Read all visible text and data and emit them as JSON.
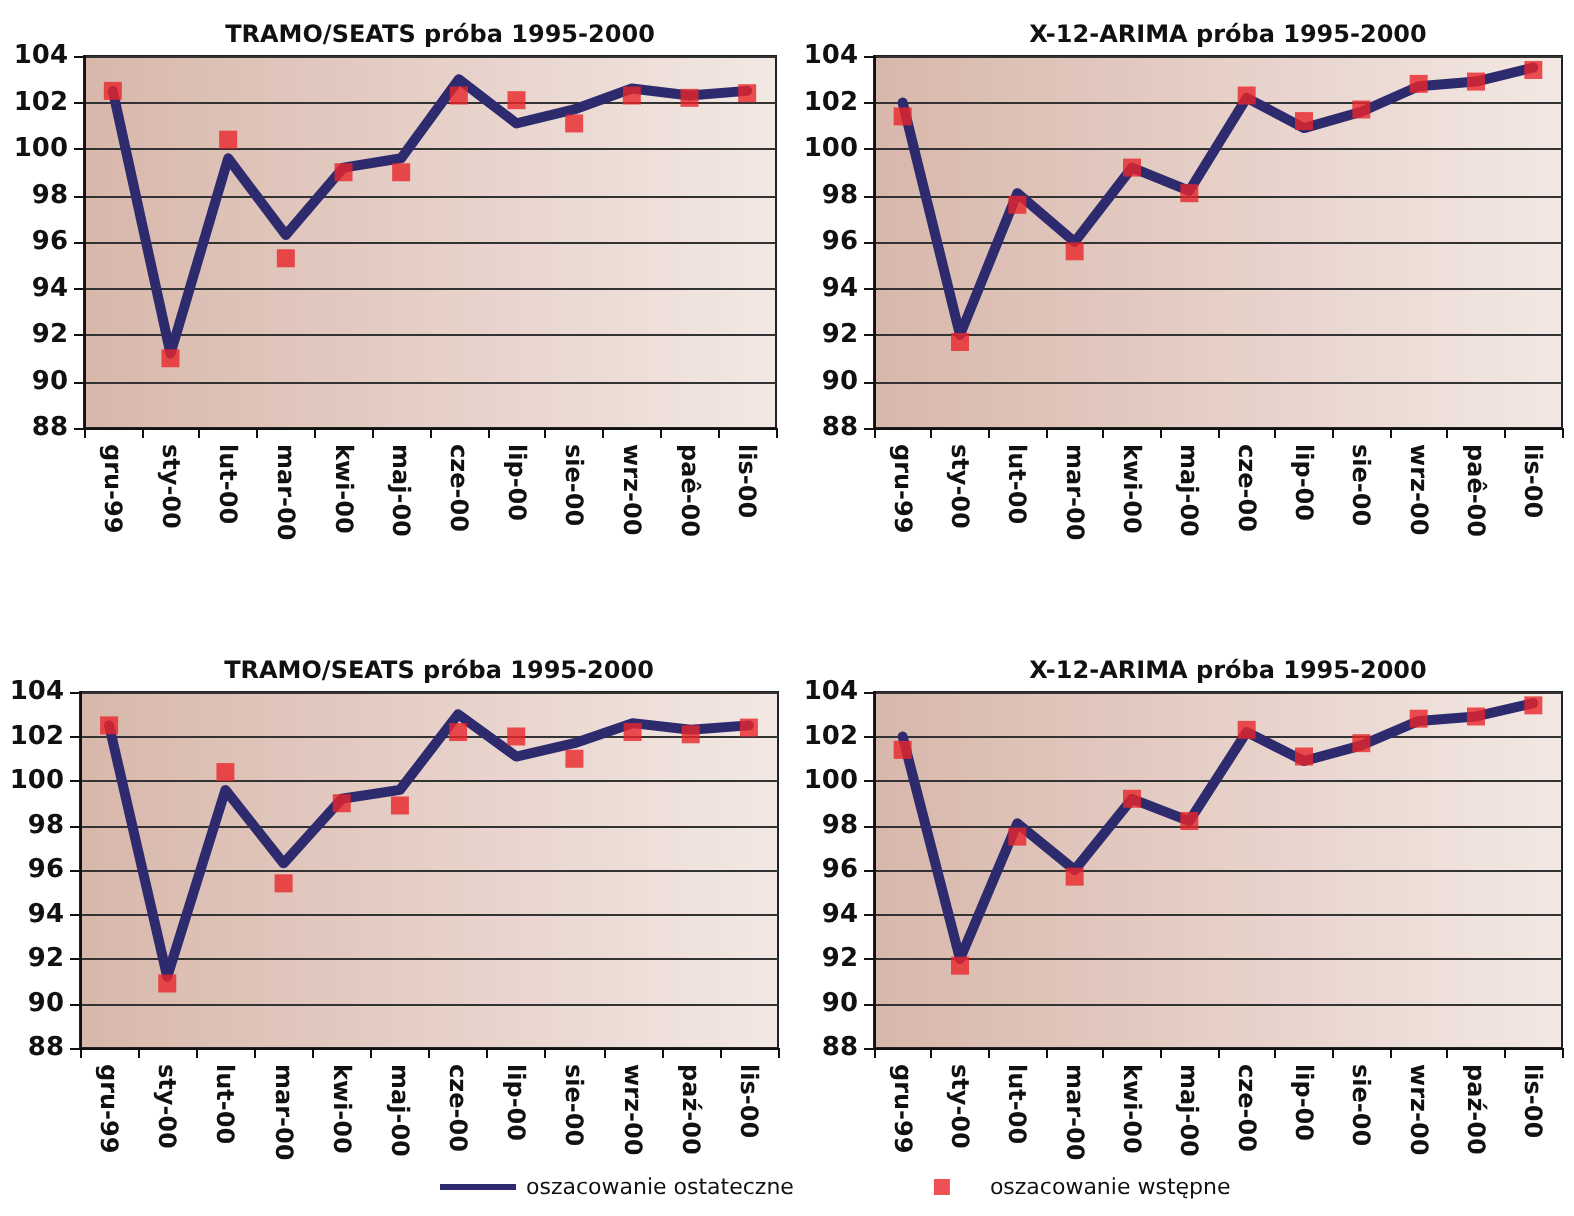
{
  "chart_data": [
    {
      "type": "line",
      "title": "TRAMO/SEATS próba 1995-2000",
      "categories": [
        "gru-99",
        "sty-00",
        "lut-00",
        "mar-00",
        "kwi-00",
        "maj-00",
        "cze-00",
        "lip-00",
        "sie-00",
        "wrz-00",
        "paê-00",
        "lis-00"
      ],
      "series": [
        {
          "type": "line",
          "color": "#2e2a6e",
          "marker": "none",
          "values": [
            102.5,
            91.2,
            99.6,
            96.3,
            99.2,
            99.6,
            103.0,
            101.1,
            101.7,
            102.6,
            102.3,
            102.5
          ]
        },
        {
          "type": "scatter",
          "color": "#e8262a",
          "marker": "square",
          "values": [
            102.5,
            91.0,
            100.4,
            95.3,
            99.0,
            99.0,
            102.3,
            102.1,
            101.1,
            102.3,
            102.2,
            102.4
          ]
        }
      ],
      "ylim": [
        88,
        104
      ],
      "yticks": [
        88,
        90,
        92,
        94,
        96,
        98,
        100,
        102,
        104
      ],
      "grid": "y"
    },
    {
      "type": "line",
      "title": "X-12-ARIMA próba 1995-2000",
      "categories": [
        "gru-99",
        "sty-00",
        "lut-00",
        "mar-00",
        "kwi-00",
        "maj-00",
        "cze-00",
        "lip-00",
        "sie-00",
        "wrz-00",
        "paê-00",
        "lis-00"
      ],
      "series": [
        {
          "type": "line",
          "color": "#2e2a6e",
          "marker": "none",
          "values": [
            102.0,
            92.0,
            98.1,
            96.0,
            99.2,
            98.2,
            102.2,
            100.9,
            101.6,
            102.7,
            102.9,
            103.5
          ]
        },
        {
          "type": "scatter",
          "color": "#e8262a",
          "marker": "square",
          "values": [
            101.4,
            91.7,
            97.6,
            95.6,
            99.2,
            98.1,
            102.3,
            101.2,
            101.7,
            102.8,
            102.9,
            103.4
          ]
        }
      ],
      "ylim": [
        88,
        104
      ],
      "yticks": [
        88,
        90,
        92,
        94,
        96,
        98,
        100,
        102,
        104
      ],
      "grid": "y"
    },
    {
      "type": "line",
      "title": "TRAMO/SEATS próba 1995-2000",
      "categories": [
        "gru-99",
        "sty-00",
        "lut-00",
        "mar-00",
        "kwi-00",
        "maj-00",
        "cze-00",
        "lip-00",
        "sie-00",
        "wrz-00",
        "paź-00",
        "lis-00"
      ],
      "series": [
        {
          "type": "line",
          "color": "#2e2a6e",
          "marker": "none",
          "values": [
            102.5,
            91.2,
            99.6,
            96.3,
            99.2,
            99.6,
            103.0,
            101.1,
            101.7,
            102.6,
            102.3,
            102.5
          ]
        },
        {
          "type": "scatter",
          "color": "#e8262a",
          "marker": "square",
          "values": [
            102.5,
            90.9,
            100.4,
            95.4,
            99.0,
            98.9,
            102.2,
            102.0,
            101.0,
            102.2,
            102.1,
            102.4
          ]
        }
      ],
      "ylim": [
        88,
        104
      ],
      "yticks": [
        88,
        90,
        92,
        94,
        96,
        98,
        100,
        102,
        104
      ],
      "grid": "y"
    },
    {
      "type": "line",
      "title": "X-12-ARIMA próba 1995-2000",
      "categories": [
        "gru-99",
        "sty-00",
        "lut-00",
        "mar-00",
        "kwi-00",
        "maj-00",
        "cze-00",
        "lip-00",
        "sie-00",
        "wrz-00",
        "paź-00",
        "lis-00"
      ],
      "series": [
        {
          "name": "oszacowanie ostateczne",
          "type": "line",
          "color": "#2e2a6e",
          "marker": "none",
          "values": [
            102.0,
            92.0,
            98.1,
            96.0,
            99.2,
            98.2,
            102.2,
            100.9,
            101.6,
            102.7,
            102.9,
            103.5
          ]
        },
        {
          "name": "oszacowanie wstępne",
          "type": "scatter",
          "color": "#e8262a",
          "marker": "square",
          "values": [
            101.4,
            91.7,
            97.5,
            95.7,
            99.2,
            98.2,
            102.3,
            101.1,
            101.7,
            102.8,
            102.9,
            103.4
          ]
        }
      ],
      "ylim": [
        88,
        104
      ],
      "yticks": [
        88,
        90,
        92,
        94,
        96,
        98,
        100,
        102,
        104
      ],
      "grid": "y",
      "legend": "bottom"
    }
  ]
}
